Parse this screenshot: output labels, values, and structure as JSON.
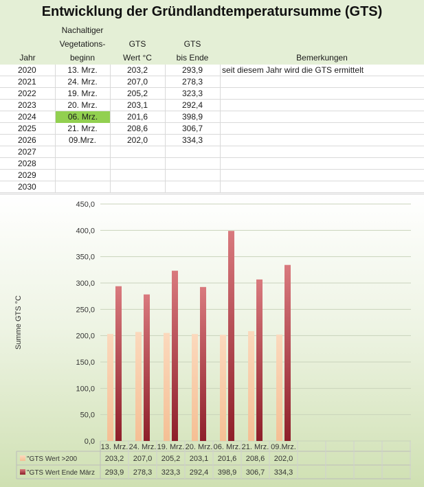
{
  "title": "Entwicklung der Gründlandtemperatursumme (GTS)",
  "table": {
    "headers": {
      "jahr": "Jahr",
      "beginn_line1": "Nachaltiger",
      "beginn_line2": "Vegetations-",
      "beginn_line3": "beginn",
      "gts_line1": "GTS",
      "gts_line2": "Wert °C",
      "ende_line1": "GTS",
      "ende_line2": "bis Ende",
      "bemerkungen": "Bemerkungen"
    },
    "rows": [
      {
        "jahr": "2020",
        "beginn": "13. Mrz.",
        "gts": "203,2",
        "ende": "293,9",
        "bemerkung": "seit diesem Jahr wird die GTS ermittelt"
      },
      {
        "jahr": "2021",
        "beginn": "24. Mrz.",
        "gts": "207,0",
        "ende": "278,3",
        "bemerkung": ""
      },
      {
        "jahr": "2022",
        "beginn": "19. Mrz.",
        "gts": "205,2",
        "ende": "323,3",
        "bemerkung": ""
      },
      {
        "jahr": "2023",
        "beginn": "20. Mrz.",
        "gts": "203,1",
        "ende": "292,4",
        "bemerkung": ""
      },
      {
        "jahr": "2024",
        "beginn": "06. Mrz.",
        "gts": "201,6",
        "ende": "398,9",
        "bemerkung": ""
      },
      {
        "jahr": "2025",
        "beginn": "21. Mrz.",
        "gts": "208,6",
        "ende": "306,7",
        "bemerkung": ""
      },
      {
        "jahr": "2026",
        "beginn": "09.Mrz.",
        "gts": "202,0",
        "ende": "334,3",
        "bemerkung": ""
      },
      {
        "jahr": "2027",
        "beginn": "",
        "gts": "",
        "ende": "",
        "bemerkung": ""
      },
      {
        "jahr": "2028",
        "beginn": "",
        "gts": "",
        "ende": "",
        "bemerkung": ""
      },
      {
        "jahr": "2029",
        "beginn": "",
        "gts": "",
        "ende": "",
        "bemerkung": ""
      },
      {
        "jahr": "2030",
        "beginn": "",
        "gts": "",
        "ende": "",
        "bemerkung": ""
      }
    ],
    "highlight_color": "#92d050"
  },
  "chart_data": {
    "type": "bar",
    "categories": [
      "13. Mrz.",
      "24. Mrz.",
      "19. Mrz.",
      "20. Mrz.",
      "06. Mrz.",
      "21. Mrz.",
      "09.Mrz."
    ],
    "series": [
      {
        "name": "\"GTS Wert >200",
        "values": [
          203.2,
          207.0,
          205.2,
          203.1,
          201.6,
          208.6,
          202.0
        ],
        "labels": [
          "203,2",
          "207,0",
          "205,2",
          "203,1",
          "201,6",
          "208,6",
          "202,0"
        ],
        "color": "#f8cba6"
      },
      {
        "name": "\"GTS Wert Ende März",
        "values": [
          293.9,
          278.3,
          323.3,
          292.4,
          398.9,
          306.7,
          334.3
        ],
        "labels": [
          "293,9",
          "278,3",
          "323,3",
          "292,4",
          "398,9",
          "306,7",
          "334,3"
        ],
        "color": "#a9353f"
      }
    ],
    "ylabel": "Summe GTS °C",
    "ylim": [
      0,
      450
    ],
    "yticks": [
      "0,0",
      "50,0",
      "100,0",
      "150,0",
      "200,0",
      "250,0",
      "300,0",
      "350,0",
      "400,0",
      "450,0"
    ],
    "grid": true,
    "legend": "data-table-below"
  }
}
